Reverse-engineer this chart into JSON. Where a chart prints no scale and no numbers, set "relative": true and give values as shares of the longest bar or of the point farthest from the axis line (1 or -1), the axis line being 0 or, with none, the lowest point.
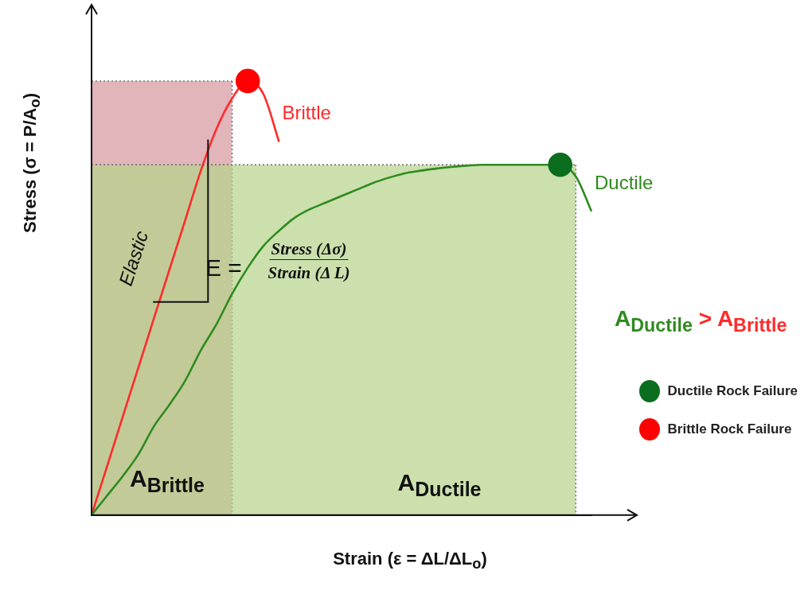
{
  "chart_data": {
    "type": "line",
    "relative": true,
    "xlabel": "Strain (ε = ΔL/ΔL$_{o}$)",
    "ylabel": "Stress (σ = P/A$_{o}$)",
    "legend": "right",
    "categories": [
      null,
      null,
      null,
      null,
      null,
      null,
      null,
      null,
      null,
      null,
      null,
      null,
      null,
      null,
      null,
      null,
      null,
      null,
      null,
      null,
      null,
      null,
      null,
      null,
      null,
      null,
      null,
      null,
      null,
      null,
      null,
      null,
      null
    ],
    "annotations": [
      "Elastic",
      "E =",
      "Stress (Δσ)",
      "Strain (Δ L)",
      "A$_{Brittle}$",
      "A$_{Ductile}$",
      "A$_{Ductile}$ > A$_{Brittle}$"
    ],
    "series": [
      {
        "type": "area",
        "color": "#d4959b",
        "line_style": "dotted",
        "values": [
          1,
          1,
          1,
          1,
          1,
          1,
          1,
          1,
          1,
          1,
          null,
          null,
          null,
          null,
          null,
          null,
          null,
          null,
          null,
          null,
          null,
          null,
          null,
          null,
          null,
          null,
          null,
          null,
          null,
          null,
          null,
          null,
          null
        ]
      },
      {
        "type": "area",
        "color": "#b5d38a",
        "line_style": "dotted",
        "values": [
          0.807,
          0.807,
          0.807,
          0.807,
          0.807,
          0.807,
          0.807,
          0.807,
          0.807,
          0.807,
          0.807,
          0.807,
          0.807,
          0.807,
          0.807,
          0.807,
          0.807,
          0.807,
          0.807,
          0.807,
          0.807,
          0.807,
          0.807,
          0.807,
          0.807,
          0.807,
          0.807,
          0.807,
          0.807,
          0.807,
          0.807,
          0.807,
          null
        ]
      },
      {
        "name": "Brittle",
        "color": "#ff2a2a",
        "line_style": "solid",
        "values": [
          0,
          0.113,
          0.227,
          0.34,
          0.454,
          0.567,
          0.68,
          0.794,
          0.89,
          0.96,
          1,
          0.97,
          0.86,
          null,
          null,
          null,
          null,
          null,
          null,
          null,
          null,
          null,
          null,
          null,
          null,
          null,
          null,
          null,
          null,
          null,
          null,
          null,
          null
        ]
      },
      {
        "name": "Ductile",
        "color": "#2e8b1e",
        "line_style": "solid",
        "values": [
          0,
          0.045,
          0.09,
          0.14,
          0.205,
          0.255,
          0.31,
          0.38,
          0.44,
          0.51,
          0.57,
          0.62,
          0.655,
          0.685,
          0.705,
          0.72,
          0.735,
          0.75,
          0.765,
          0.777,
          0.787,
          0.793,
          0.798,
          0.802,
          0.805,
          0.807,
          0.807,
          0.807,
          0.807,
          0.807,
          0.807,
          0.78,
          0.7
        ]
      },
      {
        "name": "Ductile Rock Failure",
        "color": "#0a6e1e",
        "marker": "circle",
        "values": [
          null,
          null,
          null,
          null,
          null,
          null,
          null,
          null,
          null,
          null,
          null,
          null,
          null,
          null,
          null,
          null,
          null,
          null,
          null,
          null,
          null,
          null,
          null,
          null,
          null,
          null,
          null,
          null,
          null,
          null,
          0.807,
          null,
          null
        ]
      },
      {
        "name": "Brittle Rock Failure",
        "color": "#ff0000",
        "marker": "circle",
        "values": [
          null,
          null,
          null,
          null,
          null,
          null,
          null,
          null,
          null,
          null,
          1,
          null,
          null,
          null,
          null,
          null,
          null,
          null,
          null,
          null,
          null,
          null,
          null,
          null,
          null,
          null,
          null,
          null,
          null,
          null,
          null,
          null,
          null
        ]
      }
    ]
  }
}
